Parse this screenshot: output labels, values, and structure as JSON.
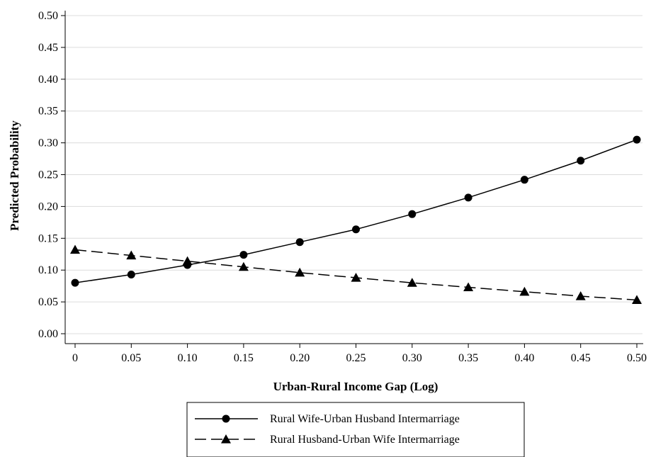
{
  "chart_data": {
    "type": "line",
    "xlabel": "Urban-Rural Income Gap (Log)",
    "ylabel": "Predicted Probability",
    "x": [
      0,
      0.05,
      0.1,
      0.15,
      0.2,
      0.25,
      0.3,
      0.35,
      0.4,
      0.45,
      0.5
    ],
    "xticks": [
      "0",
      "0.05",
      "0.10",
      "0.15",
      "0.20",
      "0.25",
      "0.30",
      "0.35",
      "0.40",
      "0.45",
      "0.50"
    ],
    "yticks": [
      "0.00",
      "0.05",
      "0.10",
      "0.15",
      "0.20",
      "0.25",
      "0.30",
      "0.35",
      "0.40",
      "0.45",
      "0.50"
    ],
    "xlim": [
      0,
      0.5
    ],
    "ylim": [
      0,
      0.5
    ],
    "grid": "horizontal",
    "legend_position": "bottom",
    "series": [
      {
        "name": "Rural Wife-Urban Husband Intermarriage",
        "marker": "circle",
        "line_style": "solid",
        "values": [
          0.08,
          0.093,
          0.108,
          0.124,
          0.144,
          0.164,
          0.188,
          0.214,
          0.242,
          0.272,
          0.305
        ]
      },
      {
        "name": "Rural Husband-Urban Wife Intermarriage",
        "marker": "triangle",
        "line_style": "dashed",
        "values": [
          0.132,
          0.123,
          0.114,
          0.105,
          0.096,
          0.088,
          0.08,
          0.073,
          0.066,
          0.059,
          0.053
        ]
      }
    ]
  }
}
